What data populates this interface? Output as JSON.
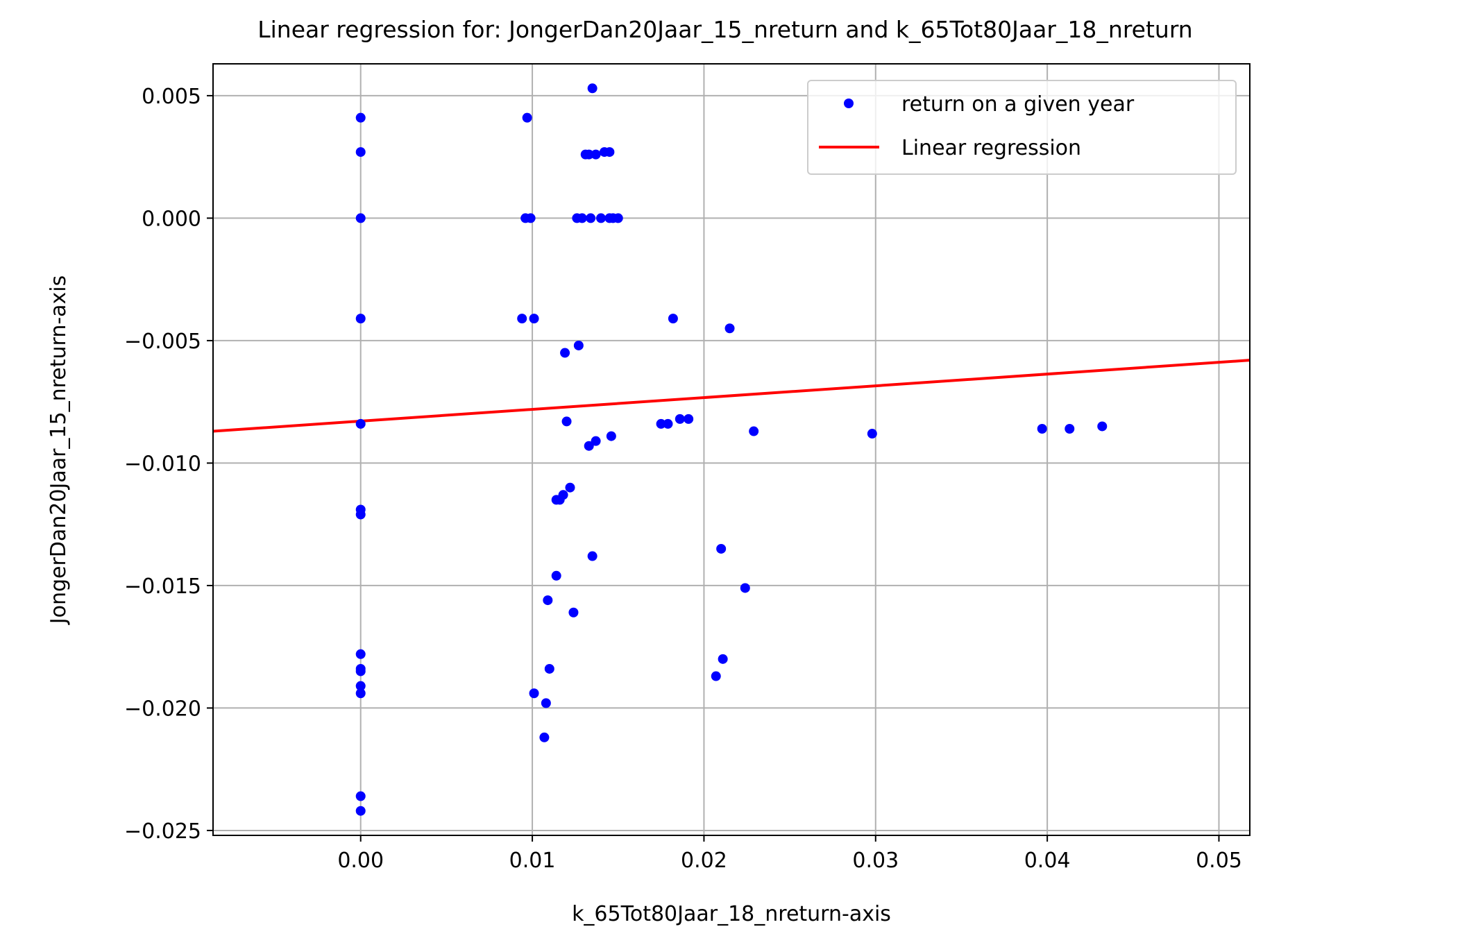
{
  "chart_data": {
    "type": "scatter",
    "title": "Linear regression for: JongerDan20Jaar_15_nreturn and k_65Tot80Jaar_18_nreturn",
    "xlabel": "k_65Tot80Jaar_18_nreturn-axis",
    "ylabel": "JongerDan20Jaar_15_nreturn-axis",
    "xlim": [
      -0.0086,
      0.0518
    ],
    "ylim": [
      -0.0252,
      0.0063
    ],
    "xticks": [
      0.0,
      0.01,
      0.02,
      0.03,
      0.04,
      0.05
    ],
    "xtick_labels": [
      "0.00",
      "0.01",
      "0.02",
      "0.03",
      "0.04",
      "0.05"
    ],
    "yticks": [
      0.005,
      0.0,
      -0.005,
      -0.01,
      -0.015,
      -0.02,
      -0.025
    ],
    "ytick_labels": [
      "0.005",
      "0.000",
      "−0.005",
      "−0.010",
      "−0.015",
      "−0.020",
      "−0.025"
    ],
    "grid": true,
    "legend_position": "top-right",
    "series": [
      {
        "name": "return on a given year",
        "kind": "scatter",
        "color": "#0000ff",
        "points": [
          [
            0.0,
            0.0041
          ],
          [
            0.0,
            0.0027
          ],
          [
            0.0,
            0.0
          ],
          [
            0.0,
            -0.0041
          ],
          [
            0.0,
            -0.0084
          ],
          [
            0.0,
            -0.0119
          ],
          [
            0.0,
            -0.0121
          ],
          [
            0.0,
            -0.0178
          ],
          [
            0.0,
            -0.0184
          ],
          [
            0.0,
            -0.0185
          ],
          [
            0.0,
            -0.0191
          ],
          [
            0.0,
            -0.0194
          ],
          [
            0.0,
            -0.0236
          ],
          [
            0.0,
            -0.0242
          ],
          [
            0.0097,
            0.0041
          ],
          [
            0.0096,
            0.0
          ],
          [
            0.0099,
            0.0
          ],
          [
            0.0094,
            -0.0041
          ],
          [
            0.0101,
            -0.0041
          ],
          [
            0.0135,
            0.0053
          ],
          [
            0.0131,
            0.0026
          ],
          [
            0.0133,
            0.0026
          ],
          [
            0.0137,
            0.0026
          ],
          [
            0.0142,
            0.0027
          ],
          [
            0.0145,
            0.0027
          ],
          [
            0.0126,
            0.0
          ],
          [
            0.0129,
            0.0
          ],
          [
            0.0134,
            0.0
          ],
          [
            0.014,
            0.0
          ],
          [
            0.0145,
            0.0
          ],
          [
            0.0147,
            0.0
          ],
          [
            0.015,
            0.0
          ],
          [
            0.0127,
            -0.0052
          ],
          [
            0.0119,
            -0.0055
          ],
          [
            0.012,
            -0.0083
          ],
          [
            0.0133,
            -0.0093
          ],
          [
            0.0137,
            -0.0091
          ],
          [
            0.0146,
            -0.0089
          ],
          [
            0.0122,
            -0.011
          ],
          [
            0.0118,
            -0.0113
          ],
          [
            0.0116,
            -0.0115
          ],
          [
            0.0114,
            -0.0115
          ],
          [
            0.0135,
            -0.0138
          ],
          [
            0.0114,
            -0.0146
          ],
          [
            0.0109,
            -0.0156
          ],
          [
            0.0124,
            -0.0161
          ],
          [
            0.011,
            -0.0184
          ],
          [
            0.0101,
            -0.0194
          ],
          [
            0.0108,
            -0.0198
          ],
          [
            0.0107,
            -0.0212
          ],
          [
            0.0182,
            -0.0041
          ],
          [
            0.0215,
            -0.0045
          ],
          [
            0.0175,
            -0.0084
          ],
          [
            0.0179,
            -0.0084
          ],
          [
            0.0186,
            -0.0082
          ],
          [
            0.0191,
            -0.0082
          ],
          [
            0.0229,
            -0.0087
          ],
          [
            0.0298,
            -0.0088
          ],
          [
            0.0397,
            -0.0086
          ],
          [
            0.0413,
            -0.0086
          ],
          [
            0.0432,
            -0.0085
          ],
          [
            0.021,
            -0.0135
          ],
          [
            0.0224,
            -0.0151
          ],
          [
            0.0211,
            -0.018
          ],
          [
            0.0207,
            -0.0187
          ]
        ]
      },
      {
        "name": "Linear regression",
        "kind": "line",
        "color": "#ff0000",
        "points": [
          [
            -0.0086,
            -0.0087
          ],
          [
            0.0518,
            -0.0058
          ]
        ]
      }
    ]
  }
}
